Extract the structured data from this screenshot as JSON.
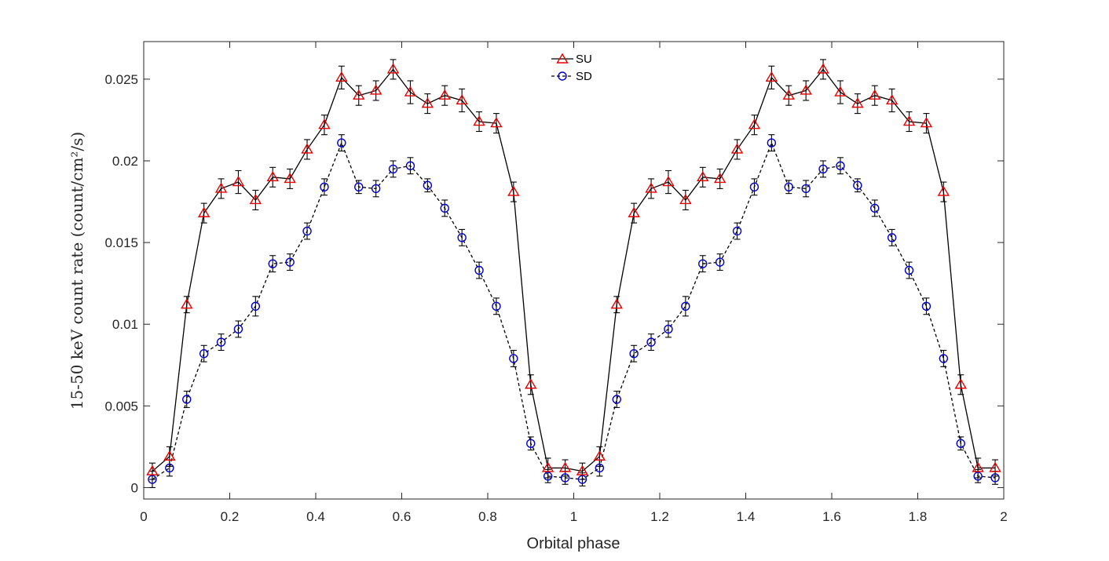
{
  "chart_data": {
    "type": "line",
    "title": "",
    "xlabel": "Orbital phase",
    "ylabel": "15-50 keV count rate (count/cm²/s)",
    "xlim": [
      0,
      2
    ],
    "ylim": [
      -0.0007,
      0.0273
    ],
    "xticks": [
      0,
      0.2,
      0.4,
      0.6,
      0.8,
      1,
      1.2,
      1.4,
      1.6,
      1.8,
      2
    ],
    "xtick_labels": [
      "0",
      "0.2",
      "0.4",
      "0.6",
      "0.8",
      "1",
      "1.2",
      "1.4",
      "1.6",
      "1.8",
      "2"
    ],
    "yticks": [
      0,
      0.005,
      0.01,
      0.015,
      0.02,
      0.025
    ],
    "ytick_labels": [
      "0",
      "0.005",
      "0.01",
      "0.015",
      "0.02",
      "0.025"
    ],
    "grid": false,
    "legend_position": "top-center",
    "x": [
      0.02,
      0.06,
      0.1,
      0.14,
      0.18,
      0.22,
      0.26,
      0.3,
      0.34,
      0.38,
      0.42,
      0.46,
      0.5,
      0.54,
      0.58,
      0.62,
      0.66,
      0.7,
      0.74,
      0.78,
      0.82,
      0.86,
      0.9,
      0.94,
      0.98,
      1.02,
      1.06,
      1.1,
      1.14,
      1.18,
      1.22,
      1.26,
      1.3,
      1.34,
      1.38,
      1.42,
      1.46,
      1.5,
      1.54,
      1.58,
      1.62,
      1.66,
      1.7,
      1.74,
      1.78,
      1.82,
      1.86,
      1.9,
      1.94,
      1.98
    ],
    "series": [
      {
        "name": "SU",
        "marker": "triangle",
        "line_style": "solid",
        "line_color": "#000000",
        "marker_color": "#e60000",
        "values": [
          0.001,
          0.0019,
          0.0112,
          0.0168,
          0.0183,
          0.0187,
          0.0176,
          0.019,
          0.0189,
          0.0207,
          0.0222,
          0.0251,
          0.024,
          0.0243,
          0.0256,
          0.0242,
          0.0235,
          0.024,
          0.0237,
          0.0224,
          0.0223,
          0.0181,
          0.0063,
          0.0012,
          0.0012,
          0.001,
          0.0019,
          0.0112,
          0.0168,
          0.0183,
          0.0187,
          0.0176,
          0.019,
          0.0189,
          0.0207,
          0.0222,
          0.0251,
          0.024,
          0.0243,
          0.0256,
          0.0242,
          0.0235,
          0.024,
          0.0237,
          0.0224,
          0.0223,
          0.0181,
          0.0063,
          0.0012,
          0.0012
        ],
        "errors": [
          0.0005,
          0.0006,
          0.0005,
          0.0006,
          0.0006,
          0.0007,
          0.0006,
          0.0006,
          0.0006,
          0.0006,
          0.0006,
          0.0007,
          0.0006,
          0.0006,
          0.0006,
          0.0007,
          0.0006,
          0.0006,
          0.0007,
          0.0006,
          0.0006,
          0.0006,
          0.0006,
          0.0006,
          0.0005,
          0.0005,
          0.0006,
          0.0005,
          0.0006,
          0.0006,
          0.0007,
          0.0006,
          0.0006,
          0.0006,
          0.0006,
          0.0006,
          0.0007,
          0.0006,
          0.0006,
          0.0006,
          0.0007,
          0.0006,
          0.0006,
          0.0007,
          0.0006,
          0.0006,
          0.0006,
          0.0006,
          0.0006,
          0.0005
        ]
      },
      {
        "name": "SD",
        "marker": "circle",
        "line_style": "dashed",
        "line_color": "#000000",
        "marker_color": "#0000cc",
        "values": [
          0.0005,
          0.0012,
          0.0054,
          0.0082,
          0.0089,
          0.0097,
          0.0111,
          0.0137,
          0.0138,
          0.0157,
          0.0184,
          0.0211,
          0.0184,
          0.0183,
          0.0195,
          0.0197,
          0.0185,
          0.0171,
          0.0153,
          0.0133,
          0.0111,
          0.0079,
          0.0027,
          0.0007,
          0.0006,
          0.0005,
          0.0012,
          0.0054,
          0.0082,
          0.0089,
          0.0097,
          0.0111,
          0.0137,
          0.0138,
          0.0157,
          0.0184,
          0.0211,
          0.0184,
          0.0183,
          0.0195,
          0.0197,
          0.0185,
          0.0171,
          0.0153,
          0.0133,
          0.0111,
          0.0079,
          0.0027,
          0.0007,
          0.0006
        ],
        "errors": [
          0.0005,
          0.0005,
          0.0005,
          0.0005,
          0.0005,
          0.0005,
          0.0006,
          0.0005,
          0.0005,
          0.0005,
          0.0005,
          0.0005,
          0.0004,
          0.0005,
          0.0005,
          0.0005,
          0.0004,
          0.0005,
          0.0005,
          0.0005,
          0.0005,
          0.0005,
          0.0004,
          0.0004,
          0.0004,
          0.0004,
          0.0005,
          0.0005,
          0.0005,
          0.0005,
          0.0005,
          0.0006,
          0.0005,
          0.0005,
          0.0005,
          0.0005,
          0.0005,
          0.0004,
          0.0005,
          0.0005,
          0.0005,
          0.0004,
          0.0005,
          0.0005,
          0.0005,
          0.0005,
          0.0005,
          0.0004,
          0.0004,
          0.0004
        ]
      }
    ]
  },
  "colors": {
    "axis": "#262626",
    "error_bar": "#000000"
  }
}
